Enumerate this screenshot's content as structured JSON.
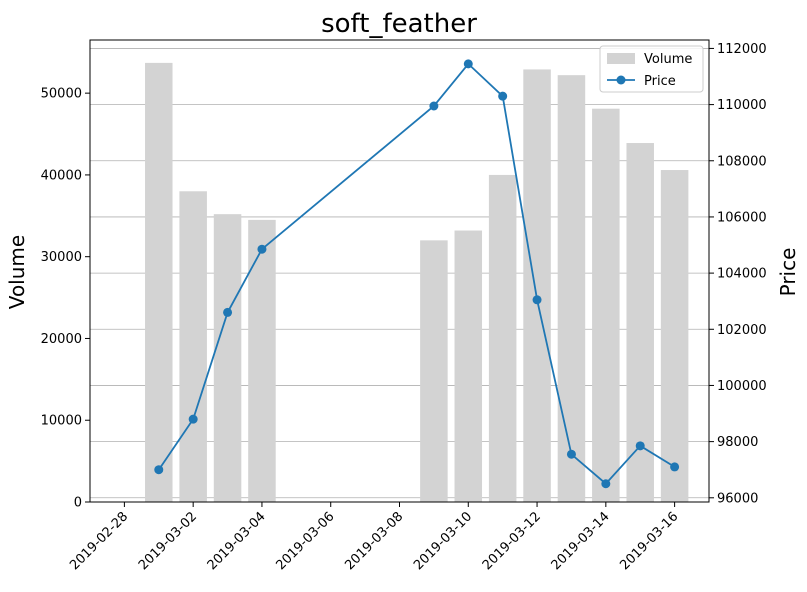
{
  "chart_data": {
    "type": "bar",
    "title": "soft_feather",
    "xlabel": "",
    "ylabel": "Volume",
    "y2label": "Price",
    "grid": true,
    "legend_position": "top-right",
    "colors": {
      "volume_bar": "#d3d3d3",
      "price_line": "#1f77b4",
      "gridline": "#b0b0b0",
      "axes": "#000000"
    },
    "x": [
      "2019-03-01",
      "2019-03-02",
      "2019-03-03",
      "2019-03-04",
      "2019-03-09",
      "2019-03-10",
      "2019-03-11",
      "2019-03-12",
      "2019-03-13",
      "2019-03-14",
      "2019-03-15",
      "2019-03-16"
    ],
    "x_ticks": [
      "2019-02-28",
      "2019-03-02",
      "2019-03-04",
      "2019-03-06",
      "2019-03-08",
      "2019-03-10",
      "2019-03-12",
      "2019-03-14",
      "2019-03-16"
    ],
    "xlim": [
      "2019-02-27",
      "2019-03-17"
    ],
    "ylim": [
      0,
      56500
    ],
    "y_ticks": [
      "0",
      "10000",
      "20000",
      "30000",
      "40000",
      "50000"
    ],
    "y2lim": [
      95850,
      112300
    ],
    "y2_ticks": [
      "96000",
      "98000",
      "100000",
      "102000",
      "104000",
      "106000",
      "108000",
      "110000",
      "112000"
    ],
    "series": [
      {
        "name": "Volume",
        "type": "bar",
        "axis": "left",
        "values": [
          53700,
          38000,
          35200,
          34500,
          32000,
          33200,
          40000,
          52900,
          52200,
          48100,
          43900,
          40600
        ]
      },
      {
        "name": "Price",
        "type": "line",
        "axis": "right",
        "values": [
          97000,
          98800,
          102600,
          104850,
          109950,
          111450,
          110300,
          103050,
          97550,
          96500,
          97850,
          97100
        ]
      }
    ]
  }
}
